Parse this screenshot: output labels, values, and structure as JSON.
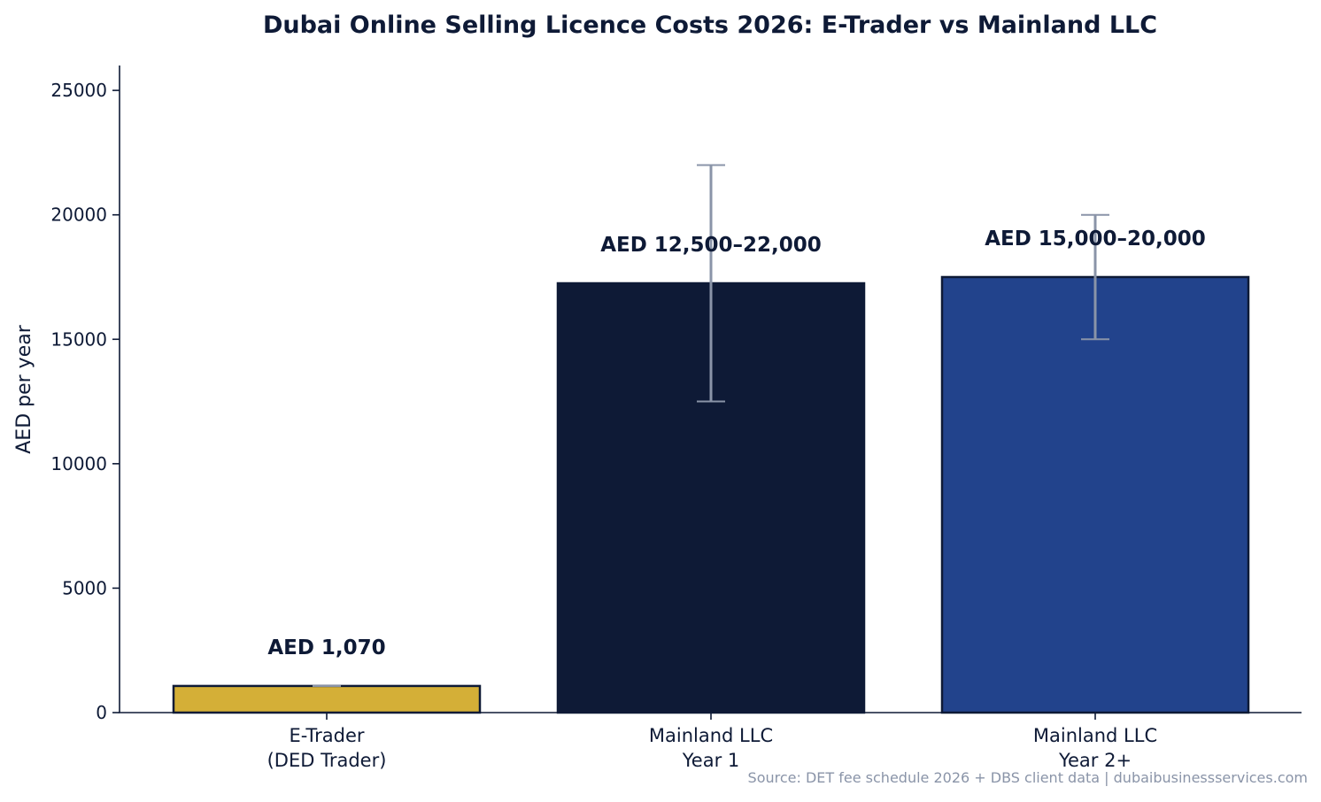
{
  "chart_data": {
    "type": "bar",
    "title": "Dubai Online Selling Licence Costs 2026: E-Trader vs Mainland LLC",
    "xlabel": "",
    "ylabel": "AED per year",
    "ylim": [
      0,
      26000
    ],
    "yticks": [
      0,
      5000,
      10000,
      15000,
      20000,
      25000
    ],
    "grid": false,
    "categories": [
      [
        "E-Trader",
        "(DED Trader)"
      ],
      [
        "Mainland LLC",
        "Year 1"
      ],
      [
        "Mainland LLC",
        "Year 2+"
      ]
    ],
    "values": [
      1070,
      17250,
      17500
    ],
    "error_ranges": [
      [
        1070,
        1070
      ],
      [
        12500,
        22000
      ],
      [
        15000,
        20000
      ]
    ],
    "data_labels": [
      "AED 1,070",
      "AED 12,500–22,000",
      "AED 15,000–20,000"
    ],
    "colors": [
      "#D4AF37",
      "#0E1A36",
      "#22438C"
    ],
    "edge_color": "#0E1A36",
    "error_color": "#8A94A8",
    "text_color": "#0E1A36",
    "source_note": "Source: DET fee schedule 2026 + DBS client data | dubaibusinessservices.com"
  }
}
